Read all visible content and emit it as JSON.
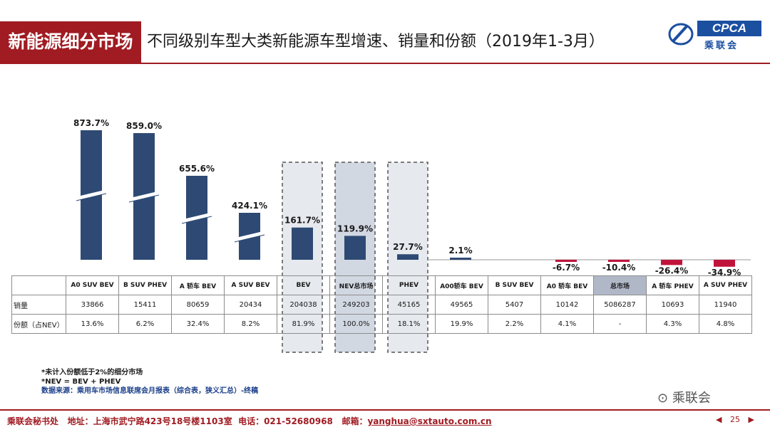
{
  "header": {
    "tag": "新能源细分市场",
    "title": "不同级别车型大类新能源车型增速、销量和份额（2019年1-3月）",
    "logo_text": "CPCA",
    "logo_cn": "乘联会"
  },
  "chart_data": {
    "type": "bar",
    "title": "不同级别车型大类新能源车型增速、销量和份额（2019年1-3月）",
    "categories": [
      "A0 SUV BEV",
      "B SUV PHEV",
      "A 轿车 BEV",
      "A SUV BEV",
      "BEV",
      "NEV总市场",
      "PHEV",
      "A00轿车 BEV",
      "B SUV BEV",
      "A0 轿车 BEV",
      "总市场",
      "A 轿车 PHEV",
      "A SUV PHEV"
    ],
    "series": [
      {
        "name": "增速",
        "values": [
          873.7,
          859.0,
          655.6,
          424.1,
          161.7,
          119.9,
          27.7,
          2.1,
          null,
          -6.7,
          -10.4,
          -26.4,
          -34.9
        ]
      }
    ],
    "value_labels": [
      "873.7%",
      "859.0%",
      "655.6%",
      "424.1%",
      "161.7%",
      "119.9%",
      "27.7%",
      "2.1%",
      "",
      "-6.7%",
      "-10.4%",
      "-26.4%",
      "-34.9%"
    ],
    "broken_axis_categories": [
      "A0 SUV BEV",
      "B SUV PHEV",
      "A 轿车 BEV",
      "A SUV BEV"
    ],
    "highlighted_categories": [
      "BEV",
      "NEV总市场",
      "PHEV"
    ],
    "colors": {
      "positive": "#2e4a74",
      "negative": "#c0143c",
      "highlight_fill": "#e6e9ee",
      "highlight_fill_strong": "#d2d8e2"
    }
  },
  "table": {
    "row_labels": [
      "销量",
      "份额（占NEV）"
    ],
    "sales": [
      "33866",
      "15411",
      "80659",
      "20434",
      "204038",
      "249203",
      "45165",
      "49565",
      "5407",
      "10142",
      "5086287",
      "10693",
      "11940"
    ],
    "share": [
      "13.6%",
      "6.2%",
      "32.4%",
      "8.2%",
      "81.9%",
      "100.0%",
      "18.1%",
      "19.9%",
      "2.2%",
      "4.1%",
      "-",
      "4.3%",
      "4.8%"
    ]
  },
  "notes": {
    "line1": "*未计入份额低于2%的细分市场",
    "line2": "*NEV = BEV + PHEV",
    "source": "数据来源：乘用车市场信息联席会月报表（综合表，狭义汇总）-终稿"
  },
  "footer": {
    "org": "乘联会秘书处",
    "address": "地址：上海市武宁路423号18号楼1103室",
    "phone": "电话：021-52680968",
    "email_label": "邮箱：",
    "email": "yanghua@sxtauto.com.cn",
    "page": "25",
    "wechat": "乘联会"
  }
}
